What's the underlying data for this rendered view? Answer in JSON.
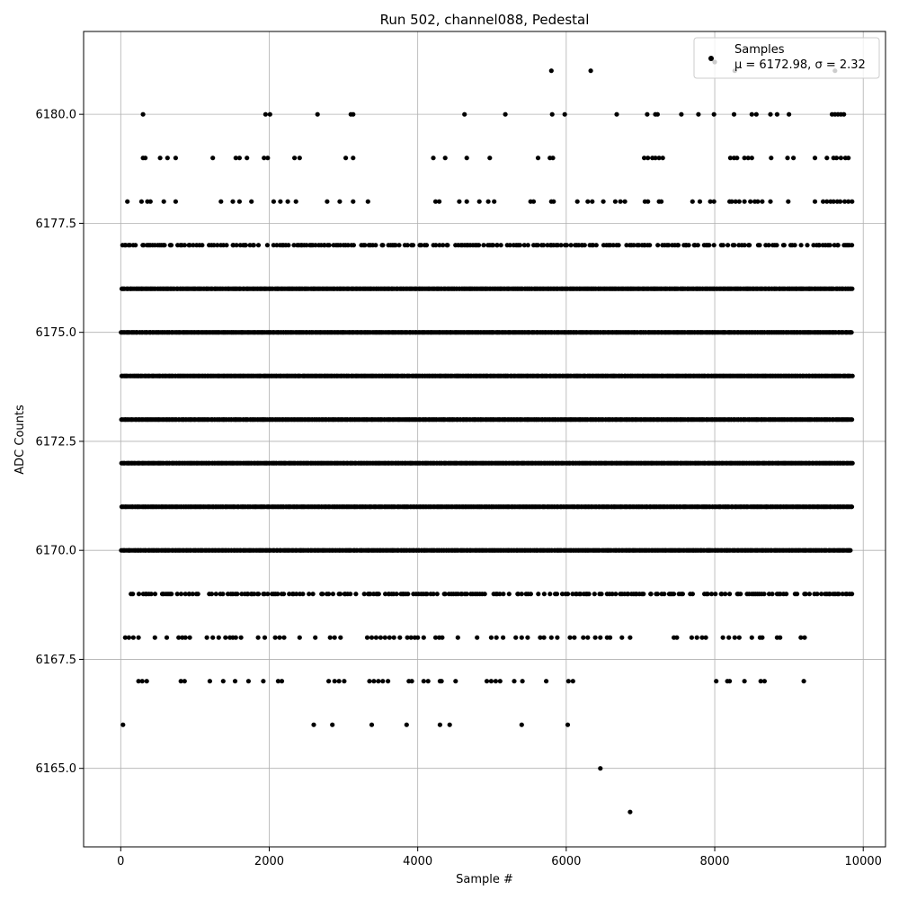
{
  "chart_data": {
    "type": "scatter",
    "title": "Run 502, channel088, Pedestal",
    "xlabel": "Sample #",
    "ylabel": "ADC Counts",
    "xlim": [
      -500,
      10300
    ],
    "ylim": [
      6163.2,
      6181.9
    ],
    "x_ticks": [
      0,
      2000,
      4000,
      6000,
      8000,
      10000
    ],
    "y_ticks": [
      6165.0,
      6167.5,
      6170.0,
      6172.5,
      6175.0,
      6177.5,
      6180.0
    ],
    "x_tick_labels": [
      "0",
      "2000",
      "4000",
      "6000",
      "8000",
      "10000"
    ],
    "y_tick_labels": [
      "6165.0",
      "6167.5",
      "6170.0",
      "6172.5",
      "6175.0",
      "6177.5",
      "6180.0"
    ],
    "grid": true,
    "legend_position": "top-right",
    "marker_color": "#000000",
    "series": [
      {
        "name": "Samples",
        "legend_stats": "μ = 6172.98, σ = 2.32",
        "n_samples": 9855,
        "sample_x_range": [
          0,
          9855
        ],
        "dense_levels": [
          6169,
          6170,
          6171,
          6172,
          6173,
          6174,
          6175,
          6176,
          6177
        ],
        "sparse_points": [
          [
            30,
            6166
          ],
          [
            2600,
            6166
          ],
          [
            2850,
            6166
          ],
          [
            3380,
            6166
          ],
          [
            3850,
            6166
          ],
          [
            4300,
            6166
          ],
          [
            4430,
            6166
          ],
          [
            5400,
            6166
          ],
          [
            6020,
            6166
          ],
          [
            6460,
            6165
          ],
          [
            6860,
            6164
          ],
          [
            5800,
            6181
          ],
          [
            6330,
            6181
          ],
          [
            8000,
            6181.2
          ],
          [
            8270,
            6181
          ],
          [
            9620,
            6181
          ],
          [
            300,
            6180
          ],
          [
            1950,
            6180
          ],
          [
            2010,
            6180
          ],
          [
            2650,
            6180
          ],
          [
            3100,
            6180
          ],
          [
            3130,
            6180
          ],
          [
            4630,
            6180
          ],
          [
            5180,
            6180
          ],
          [
            5810,
            6180
          ],
          [
            5980,
            6180
          ],
          [
            6680,
            6180
          ],
          [
            7090,
            6180
          ],
          [
            7200,
            6180
          ],
          [
            7230,
            6180
          ],
          [
            7550,
            6180
          ],
          [
            7780,
            6180
          ],
          [
            7990,
            6180
          ],
          [
            8260,
            6180
          ],
          [
            8500,
            6180
          ],
          [
            8560,
            6180
          ],
          [
            8750,
            6180
          ],
          [
            8840,
            6180
          ],
          [
            9000,
            6180
          ],
          [
            9580,
            6180
          ],
          [
            9620,
            6180
          ],
          [
            9660,
            6180
          ],
          [
            9700,
            6180
          ],
          [
            9740,
            6180
          ],
          [
            300,
            6179
          ],
          [
            330,
            6179
          ],
          [
            530,
            6179
          ],
          [
            630,
            6179
          ],
          [
            740,
            6179
          ],
          [
            1240,
            6179
          ],
          [
            1550,
            6179
          ],
          [
            1600,
            6179
          ],
          [
            1700,
            6179
          ],
          [
            1930,
            6179
          ],
          [
            1980,
            6179
          ],
          [
            2340,
            6179
          ],
          [
            2410,
            6179
          ],
          [
            3030,
            6179
          ],
          [
            3130,
            6179
          ],
          [
            4210,
            6179
          ],
          [
            4370,
            6179
          ],
          [
            4660,
            6179
          ],
          [
            4970,
            6179
          ],
          [
            5620,
            6179
          ],
          [
            5780,
            6179
          ],
          [
            5820,
            6179
          ],
          [
            7050,
            6179
          ],
          [
            7100,
            6179
          ],
          [
            7160,
            6179
          ],
          [
            7200,
            6179
          ],
          [
            7250,
            6179
          ],
          [
            7300,
            6179
          ],
          [
            8210,
            6179
          ],
          [
            8260,
            6179
          ],
          [
            8300,
            6179
          ],
          [
            8400,
            6179
          ],
          [
            8450,
            6179
          ],
          [
            8500,
            6179
          ],
          [
            8760,
            6179
          ],
          [
            8980,
            6179
          ],
          [
            9060,
            6179
          ],
          [
            9350,
            6179
          ],
          [
            9510,
            6179
          ],
          [
            9600,
            6179
          ],
          [
            9640,
            6179
          ],
          [
            9700,
            6179
          ],
          [
            9760,
            6179
          ],
          [
            9800,
            6179
          ],
          [
            90,
            6178
          ],
          [
            280,
            6178
          ],
          [
            360,
            6178
          ],
          [
            400,
            6178
          ],
          [
            580,
            6178
          ],
          [
            740,
            6178
          ],
          [
            1350,
            6178
          ],
          [
            1510,
            6178
          ],
          [
            1600,
            6178
          ],
          [
            1760,
            6178
          ],
          [
            2060,
            6178
          ],
          [
            2150,
            6178
          ],
          [
            2250,
            6178
          ],
          [
            2360,
            6178
          ],
          [
            2780,
            6178
          ],
          [
            2950,
            6178
          ],
          [
            3130,
            6178
          ],
          [
            3330,
            6178
          ],
          [
            4240,
            6178
          ],
          [
            4290,
            6178
          ],
          [
            4560,
            6178
          ],
          [
            4660,
            6178
          ],
          [
            4830,
            6178
          ],
          [
            4950,
            6178
          ],
          [
            5030,
            6178
          ],
          [
            5520,
            6178
          ],
          [
            5560,
            6178
          ],
          [
            5800,
            6178
          ],
          [
            5830,
            6178
          ],
          [
            6150,
            6178
          ],
          [
            6290,
            6178
          ],
          [
            6350,
            6178
          ],
          [
            6500,
            6178
          ],
          [
            6660,
            6178
          ],
          [
            6730,
            6178
          ],
          [
            6790,
            6178
          ],
          [
            7060,
            6178
          ],
          [
            7100,
            6178
          ],
          [
            7250,
            6178
          ],
          [
            7280,
            6178
          ],
          [
            7700,
            6178
          ],
          [
            7800,
            6178
          ],
          [
            7940,
            6178
          ],
          [
            7990,
            6178
          ],
          [
            8200,
            6178
          ],
          [
            8230,
            6178
          ],
          [
            8280,
            6178
          ],
          [
            8330,
            6178
          ],
          [
            8400,
            6178
          ],
          [
            8480,
            6178
          ],
          [
            8540,
            6178
          ],
          [
            8580,
            6178
          ],
          [
            8640,
            6178
          ],
          [
            8750,
            6178
          ],
          [
            8990,
            6178
          ],
          [
            9350,
            6178
          ],
          [
            9460,
            6178
          ],
          [
            9510,
            6178
          ],
          [
            9560,
            6178
          ],
          [
            9600,
            6178
          ],
          [
            9650,
            6178
          ],
          [
            9690,
            6178
          ],
          [
            9750,
            6178
          ],
          [
            9800,
            6178
          ],
          [
            9850,
            6178
          ],
          [
            60,
            6168
          ],
          [
            110,
            6168
          ],
          [
            170,
            6168
          ],
          [
            240,
            6168
          ],
          [
            460,
            6168
          ],
          [
            620,
            6168
          ],
          [
            780,
            6168
          ],
          [
            830,
            6168
          ],
          [
            870,
            6168
          ],
          [
            930,
            6168
          ],
          [
            1160,
            6168
          ],
          [
            1240,
            6168
          ],
          [
            1320,
            6168
          ],
          [
            1410,
            6168
          ],
          [
            1470,
            6168
          ],
          [
            1510,
            6168
          ],
          [
            1550,
            6168
          ],
          [
            1620,
            6168
          ],
          [
            1850,
            6168
          ],
          [
            1940,
            6168
          ],
          [
            2080,
            6168
          ],
          [
            2140,
            6168
          ],
          [
            2200,
            6168
          ],
          [
            2410,
            6168
          ],
          [
            2620,
            6168
          ],
          [
            2820,
            6168
          ],
          [
            2880,
            6168
          ],
          [
            2960,
            6168
          ],
          [
            3320,
            6168
          ],
          [
            3380,
            6168
          ],
          [
            3440,
            6168
          ],
          [
            3500,
            6168
          ],
          [
            3560,
            6168
          ],
          [
            3620,
            6168
          ],
          [
            3680,
            6168
          ],
          [
            3760,
            6168
          ],
          [
            3860,
            6168
          ],
          [
            3910,
            6168
          ],
          [
            3960,
            6168
          ],
          [
            4000,
            6168
          ],
          [
            4080,
            6168
          ],
          [
            4240,
            6168
          ],
          [
            4290,
            6168
          ],
          [
            4330,
            6168
          ],
          [
            4540,
            6168
          ],
          [
            4800,
            6168
          ],
          [
            4990,
            6168
          ],
          [
            5060,
            6168
          ],
          [
            5150,
            6168
          ],
          [
            5320,
            6168
          ],
          [
            5400,
            6168
          ],
          [
            5480,
            6168
          ],
          [
            5650,
            6168
          ],
          [
            5700,
            6168
          ],
          [
            5800,
            6168
          ],
          [
            5880,
            6168
          ],
          [
            6050,
            6168
          ],
          [
            6110,
            6168
          ],
          [
            6230,
            6168
          ],
          [
            6290,
            6168
          ],
          [
            6390,
            6168
          ],
          [
            6460,
            6168
          ],
          [
            6550,
            6168
          ],
          [
            6590,
            6168
          ],
          [
            6750,
            6168
          ],
          [
            6860,
            6168
          ],
          [
            7450,
            6168
          ],
          [
            7490,
            6168
          ],
          [
            7690,
            6168
          ],
          [
            7760,
            6168
          ],
          [
            7830,
            6168
          ],
          [
            7880,
            6168
          ],
          [
            8110,
            6168
          ],
          [
            8190,
            6168
          ],
          [
            8270,
            6168
          ],
          [
            8330,
            6168
          ],
          [
            8500,
            6168
          ],
          [
            8610,
            6168
          ],
          [
            8640,
            6168
          ],
          [
            8840,
            6168
          ],
          [
            8880,
            6168
          ],
          [
            9160,
            6168
          ],
          [
            9210,
            6168
          ],
          [
            240,
            6167
          ],
          [
            290,
            6167
          ],
          [
            350,
            6167
          ],
          [
            810,
            6167
          ],
          [
            860,
            6167
          ],
          [
            1200,
            6167
          ],
          [
            1380,
            6167
          ],
          [
            1540,
            6167
          ],
          [
            1720,
            6167
          ],
          [
            1920,
            6167
          ],
          [
            2120,
            6167
          ],
          [
            2170,
            6167
          ],
          [
            2800,
            6167
          ],
          [
            2880,
            6167
          ],
          [
            2940,
            6167
          ],
          [
            3010,
            6167
          ],
          [
            3350,
            6167
          ],
          [
            3410,
            6167
          ],
          [
            3470,
            6167
          ],
          [
            3530,
            6167
          ],
          [
            3600,
            6167
          ],
          [
            3880,
            6167
          ],
          [
            3920,
            6167
          ],
          [
            4080,
            6167
          ],
          [
            4140,
            6167
          ],
          [
            4300,
            6167
          ],
          [
            4320,
            6167
          ],
          [
            4510,
            6167
          ],
          [
            4930,
            6167
          ],
          [
            4990,
            6167
          ],
          [
            5050,
            6167
          ],
          [
            5110,
            6167
          ],
          [
            5300,
            6167
          ],
          [
            5410,
            6167
          ],
          [
            5730,
            6167
          ],
          [
            6030,
            6167
          ],
          [
            6090,
            6167
          ],
          [
            8020,
            6167
          ],
          [
            8170,
            6167
          ],
          [
            8200,
            6167
          ],
          [
            8400,
            6167
          ],
          [
            8620,
            6167
          ],
          [
            8670,
            6167
          ],
          [
            9200,
            6167
          ]
        ]
      }
    ]
  }
}
